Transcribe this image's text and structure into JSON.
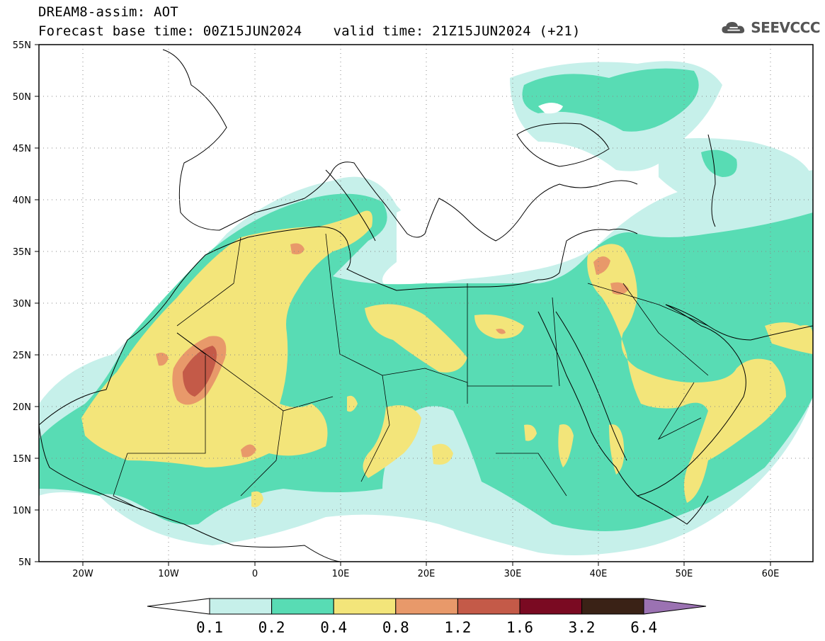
{
  "header": {
    "title": "DREAM8-assim: AOT",
    "base_time": "Forecast base time: 00Z15JUN2024",
    "valid_time": "valid time: 21Z15JUN2024 (+21)"
  },
  "logo": {
    "text": "SEEVCCC",
    "icon": "cloud-icon"
  },
  "map": {
    "lat_labels": [
      "55N",
      "50N",
      "45N",
      "40N",
      "35N",
      "30N",
      "25N",
      "20N",
      "15N",
      "10N",
      "5N"
    ],
    "lon_labels": [
      "20W",
      "10W",
      "0",
      "10E",
      "20E",
      "30E",
      "40E",
      "50E",
      "60E"
    ],
    "colors": {
      "land": "#ffffff",
      "border": "#000000",
      "lvl01": "#c6f0ea",
      "lvl02": "#58dcb4",
      "lvl04": "#f3e57a",
      "lvl08": "#e8996a",
      "lvl12": "#c45a48",
      "lvl16": "#7a0a22",
      "lvl32": "#3a2216",
      "lvl64": "#9b72b2"
    }
  },
  "colorbar": {
    "ticks": [
      "0.1",
      "0.2",
      "0.4",
      "0.8",
      "1.2",
      "1.6",
      "3.2",
      "6.4"
    ],
    "colors": [
      "#c6f0ea",
      "#58dcb4",
      "#f3e57a",
      "#e8996a",
      "#c45a48",
      "#7a0a22",
      "#3a2216"
    ],
    "low_color": "#ffffff",
    "high_color": "#9b72b2"
  }
}
